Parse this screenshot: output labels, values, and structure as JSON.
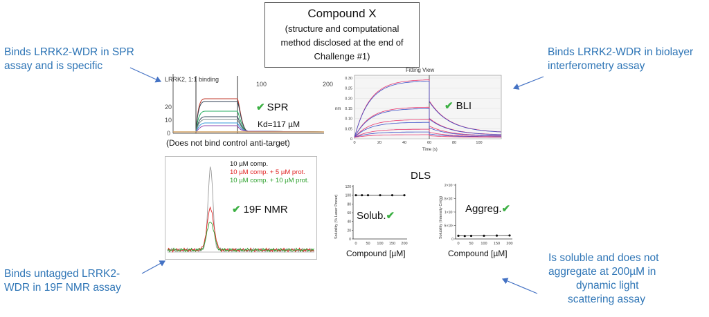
{
  "center": {
    "title": "Compound X",
    "line1": "(structure and computational",
    "line2": "method disclosed at the end of",
    "line3": "Challenge #1)"
  },
  "callouts": {
    "spr_top": [
      "Binds LRRK2-WDR in SPR",
      "assay and is specific"
    ],
    "bli_top": [
      "Binds LRRK2-WDR in biolayer",
      "interferometry assay"
    ],
    "nmr_bottom": [
      "Binds untagged LRRK2-",
      "WDR in 19F NMR assay"
    ],
    "dls_bottom": [
      "Is soluble and does not",
      "aggregate at 200µM in",
      "dynamic light",
      "scattering assay"
    ]
  },
  "spr": {
    "header": "LRRK2, 1:1 binding",
    "axis_200": "200",
    "axis_100": "100",
    "label": "SPR",
    "kd": "Kd=117 µM",
    "note": "(Does not bind control anti-target)",
    "y_ticks": [
      "20",
      "10",
      "0"
    ]
  },
  "bli": {
    "title": "Fitting View",
    "label": "BLI",
    "y_label": "nm",
    "x_label": "Time (s)",
    "y_ticks": [
      "0.30",
      "0.25",
      "0.20",
      "0.15",
      "0.10",
      "0.05",
      "0"
    ],
    "x_ticks": [
      "0",
      "20",
      "40",
      "60",
      "80",
      "100"
    ]
  },
  "nmr": {
    "legend": [
      "10 µM comp.",
      "10 µM comp. + 5 µM prot.",
      "10 µM comp. + 10 µM prot."
    ],
    "label": "19F NMR"
  },
  "dls": {
    "title": "DLS",
    "solub_label": "Solub.",
    "aggreg_label": "Aggreg.",
    "solub_y_label": "Solubility (% Laser Power)",
    "aggreg_y_label": "Solubility (Intensity Cnt/s)",
    "x_label": "Compound [µM]",
    "solub_y_ticks": [
      "120",
      "100",
      "80",
      "60",
      "40",
      "20",
      "0"
    ],
    "aggreg_y_ticks": [
      "2×10⁷",
      "1.5×10⁷",
      "1×10⁷",
      "5×10⁶",
      "0"
    ],
    "x_ticks": [
      "0",
      "50",
      "100",
      "150",
      "200"
    ]
  },
  "colors": {
    "callout": "#2e75b6",
    "check": "#3cb043",
    "red": "#e02020",
    "green": "#2ca02c"
  }
}
